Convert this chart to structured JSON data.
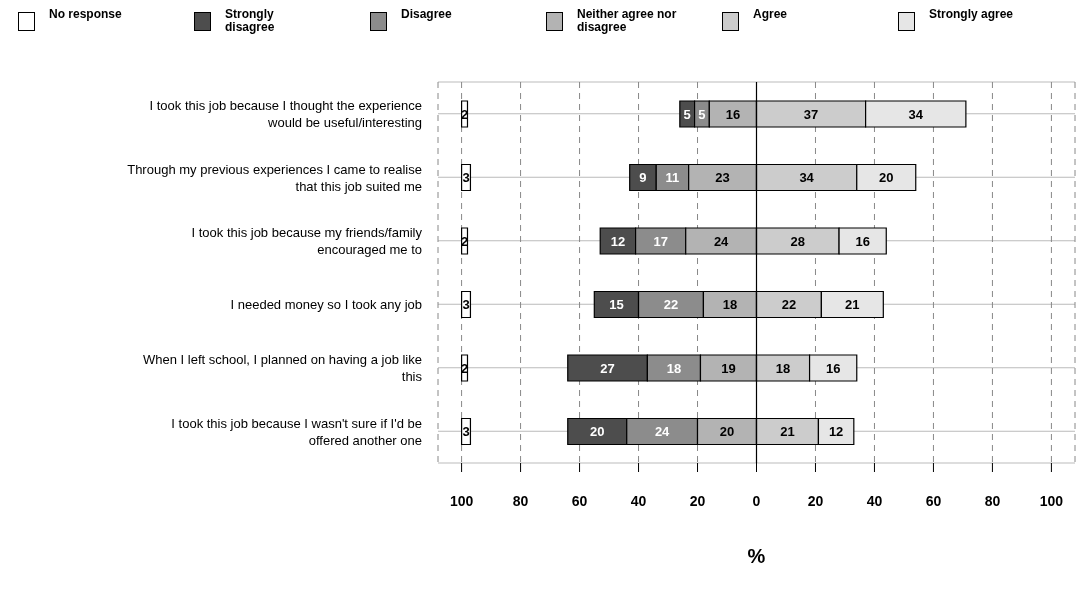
{
  "chart_data": {
    "type": "bar",
    "orientation": "horizontal",
    "xlabel": "%",
    "categories": [
      "I took this job because I thought the experience would be useful/interesting",
      "Through my previous experiences I came to realise that this job suited me",
      "I took this job because my friends/family encouraged me to",
      "I needed money so I took any job",
      "When I left school, I planned on having a job like this",
      "I took this job because I wasn't sure if I'd be offered another one"
    ],
    "series": [
      {
        "name": "No response",
        "color": "#ffffff",
        "values": [
          2,
          3,
          2,
          3,
          2,
          3
        ],
        "base": [
          -100,
          -100,
          -100,
          -100,
          -100,
          -100
        ]
      },
      {
        "name": "Strongly disagree",
        "color": "#4d4d4d",
        "values": [
          5,
          9,
          12,
          15,
          27,
          20
        ],
        "base": [
          -26,
          -43,
          -53,
          -55,
          -64,
          -64
        ]
      },
      {
        "name": "Disagree",
        "color": "#8c8c8c",
        "values": [
          5,
          11,
          17,
          22,
          18,
          24
        ],
        "base": [
          -21,
          -34,
          -41,
          -40,
          -37,
          -44
        ]
      },
      {
        "name": "Neither agree nor disagree",
        "color": "#b3b3b3",
        "values": [
          16,
          23,
          24,
          18,
          19,
          20
        ],
        "base": [
          -16,
          -23,
          -24,
          -18,
          -19,
          -20
        ]
      },
      {
        "name": "Agree",
        "color": "#cccccc",
        "values": [
          37,
          34,
          28,
          22,
          18,
          21
        ],
        "base": [
          0,
          0,
          0,
          0,
          0,
          0
        ]
      },
      {
        "name": "Strongly agree",
        "color": "#e6e6e6",
        "values": [
          34,
          20,
          16,
          21,
          16,
          12
        ],
        "base": [
          37,
          34,
          28,
          22,
          18,
          21
        ]
      }
    ],
    "xlim": [
      -108,
      108
    ],
    "xticks": [
      {
        "value": -100,
        "label": "100"
      },
      {
        "value": -80,
        "label": "80"
      },
      {
        "value": -60,
        "label": "60"
      },
      {
        "value": -40,
        "label": "40"
      },
      {
        "value": -20,
        "label": "20"
      },
      0,
      20,
      40,
      60,
      80,
      100
    ],
    "ref_lines": [
      {
        "axis": "x",
        "value": 0,
        "color": "#000000"
      }
    ],
    "grid": true,
    "data_labels": true,
    "legend": "top"
  }
}
